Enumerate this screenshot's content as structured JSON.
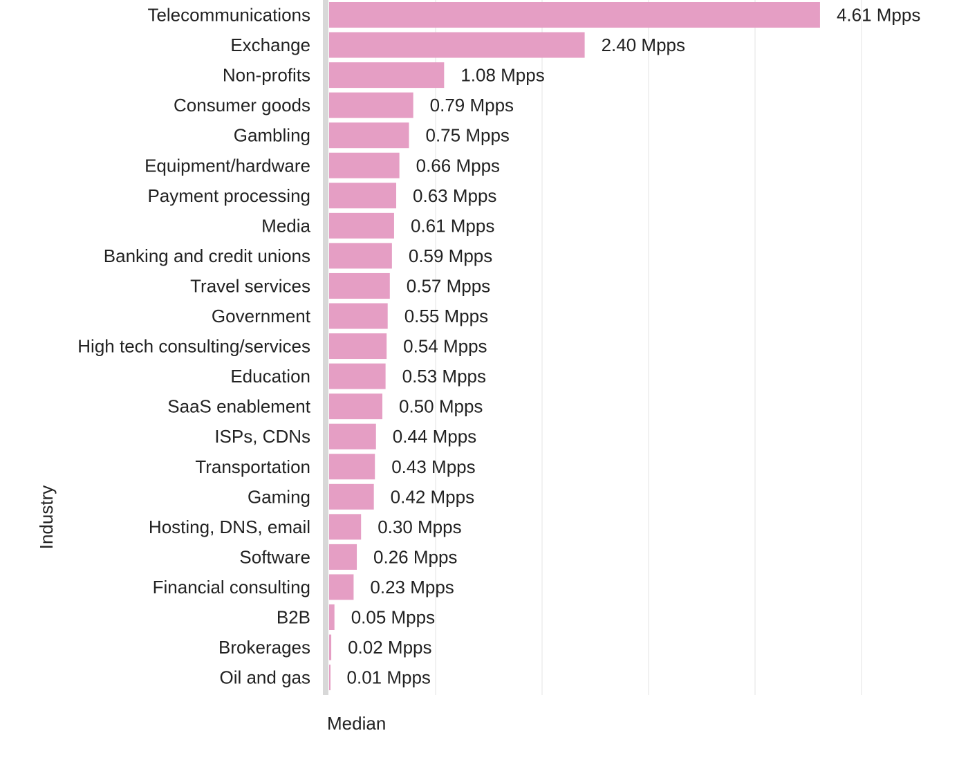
{
  "chart_data": {
    "type": "bar",
    "orientation": "horizontal",
    "ylabel": "Industry",
    "xlabel": "Median",
    "value_unit": "Mpps",
    "grid": true,
    "bar_color": "#e59ec4",
    "axis_line_color": "#d8d8d8",
    "categories": [
      "Telecommunications",
      "Exchange",
      "Non-profits",
      "Consumer goods",
      "Gambling",
      "Equipment/hardware",
      "Payment processing",
      "Media",
      "Banking and credit unions",
      "Travel services",
      "Government",
      "High tech consulting/services",
      "Education",
      "SaaS enablement",
      "ISPs, CDNs",
      "Transportation",
      "Gaming",
      "Hosting, DNS, email",
      "Software",
      "Financial consulting",
      "B2B",
      "Brokerages",
      "Oil and gas"
    ],
    "values": [
      4.61,
      2.4,
      1.08,
      0.79,
      0.75,
      0.66,
      0.63,
      0.61,
      0.59,
      0.57,
      0.55,
      0.54,
      0.53,
      0.5,
      0.44,
      0.43,
      0.42,
      0.3,
      0.26,
      0.23,
      0.05,
      0.02,
      0.01
    ],
    "value_labels": [
      "4.61 Mpps",
      "2.40 Mpps",
      "1.08 Mpps",
      "0.79 Mpps",
      "0.75 Mpps",
      "0.66 Mpps",
      "0.63 Mpps",
      "0.61 Mpps",
      "0.59 Mpps",
      "0.57 Mpps",
      "0.55 Mpps",
      "0.54 Mpps",
      "0.53 Mpps",
      "0.50 Mpps",
      "0.44 Mpps",
      "0.43 Mpps",
      "0.42 Mpps",
      "0.30 Mpps",
      "0.26 Mpps",
      "0.23 Mpps",
      "0.05 Mpps",
      "0.02 Mpps",
      "0.01 Mpps"
    ],
    "xlim": [
      0,
      5
    ]
  }
}
